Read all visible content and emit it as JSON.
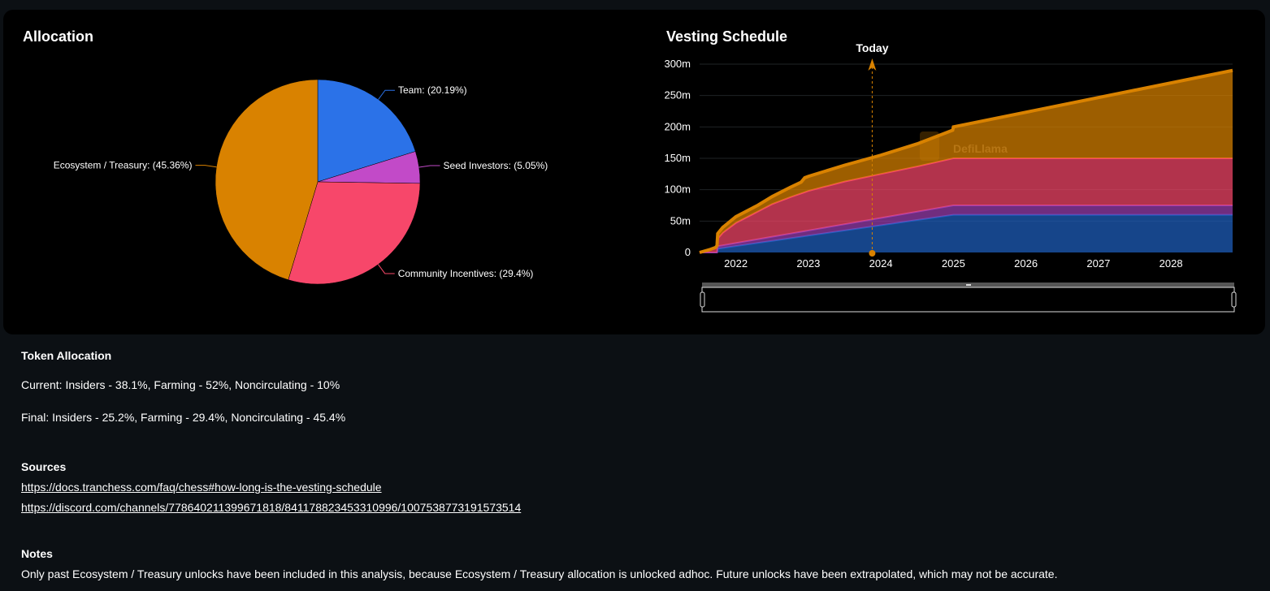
{
  "allocation": {
    "title": "Allocation",
    "chart_data": {
      "type": "pie",
      "slices": [
        {
          "name": "Team",
          "label": "Team: (20.19%)",
          "value": 20.19,
          "color": "#2b72e8"
        },
        {
          "name": "Seed Investors",
          "label": "Seed Investors: (5.05%)",
          "value": 5.05,
          "color": "#c24ac8"
        },
        {
          "name": "Community Incentives",
          "label": "Community Incentives: (29.4%)",
          "value": 29.4,
          "color": "#f7476a"
        },
        {
          "name": "Ecosystem / Treasury",
          "label": "Ecosystem / Treasury: (45.36%)",
          "value": 45.36,
          "color": "#d98200"
        }
      ]
    }
  },
  "vesting": {
    "title": "Vesting Schedule",
    "today_label": "Today",
    "today_x": 2023.88,
    "watermark": "DefiLlama",
    "chart_data": {
      "type": "area",
      "stacked": true,
      "ylim": [
        0,
        300
      ],
      "xlim": [
        2021.5,
        2028.85
      ],
      "yticks": [
        "0",
        "50m",
        "100m",
        "150m",
        "200m",
        "250m",
        "300m"
      ],
      "ytick_values": [
        0,
        50,
        100,
        150,
        200,
        250,
        300
      ],
      "xticks": [
        "2022",
        "2023",
        "2024",
        "2025",
        "2026",
        "2027",
        "2028"
      ],
      "xtick_values": [
        2022,
        2023,
        2024,
        2025,
        2026,
        2027,
        2028
      ],
      "grid": true,
      "series": [
        {
          "name": "Team",
          "color": "#1f5fbf",
          "points": [
            [
              2021.5,
              0
            ],
            [
              2021.74,
              0
            ],
            [
              2021.75,
              6
            ],
            [
              2025,
              60
            ],
            [
              2028.85,
              60
            ]
          ]
        },
        {
          "name": "Seed Investors",
          "color": "#9b3fb0",
          "points": [
            [
              2021.5,
              0
            ],
            [
              2021.74,
              0
            ],
            [
              2021.75,
              4
            ],
            [
              2025,
              15
            ],
            [
              2028.85,
              15
            ]
          ]
        },
        {
          "name": "Community Incentives",
          "color": "#f7476a",
          "points": [
            [
              2021.5,
              0
            ],
            [
              2021.65,
              5
            ],
            [
              2021.72,
              8
            ],
            [
              2021.75,
              12
            ],
            [
              2021.82,
              20
            ],
            [
              2022,
              32
            ],
            [
              2022.25,
              42
            ],
            [
              2022.5,
              52
            ],
            [
              2022.75,
              58
            ],
            [
              2023,
              63
            ],
            [
              2023.5,
              68
            ],
            [
              2024,
              70
            ],
            [
              2024.5,
              72
            ],
            [
              2025,
              75
            ],
            [
              2028.85,
              75
            ]
          ]
        },
        {
          "name": "Ecosystem / Treasury",
          "color": "#d98200",
          "points": [
            [
              2021.5,
              0
            ],
            [
              2021.74,
              0
            ],
            [
              2021.75,
              8
            ],
            [
              2022,
              10
            ],
            [
              2022.3,
              10
            ],
            [
              2022.5,
              12
            ],
            [
              2022.9,
              18
            ],
            [
              2022.95,
              23
            ],
            [
              2023.5,
              26
            ],
            [
              2024,
              30
            ],
            [
              2024.5,
              36
            ],
            [
              2024.99,
              45
            ],
            [
              2025,
              50
            ],
            [
              2028.85,
              140
            ]
          ]
        }
      ]
    }
  },
  "info": {
    "token_allocation_heading": "Token Allocation",
    "current": "Current: Insiders - 38.1%, Farming - 52%, Noncirculating - 10%",
    "final": "Final: Insiders - 25.2%, Farming - 29.4%, Noncirculating - 45.4%",
    "sources_heading": "Sources",
    "sources": [
      "https://docs.tranchess.com/faq/chess#how-long-is-the-vesting-schedule",
      "https://discord.com/channels/778640211399671818/841178823453310996/1007538773191573514"
    ],
    "notes_heading": "Notes",
    "notes": "Only past Ecosystem / Treasury unlocks have been included in this analysis, because Ecosystem / Treasury allocation is unlocked adhoc. Future unlocks have been extrapolated, which may not be accurate."
  }
}
